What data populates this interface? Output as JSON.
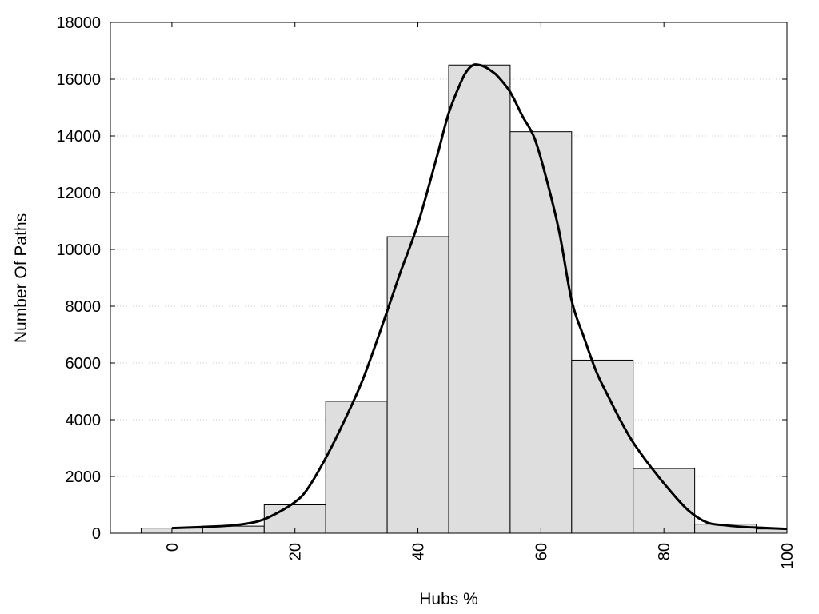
{
  "chart_data": {
    "type": "bar",
    "title": "",
    "xlabel": "Hubs %",
    "ylabel": "Number Of Paths",
    "xlim": [
      -10,
      100
    ],
    "ylim": [
      0,
      18000
    ],
    "x_ticks": [
      0,
      20,
      40,
      60,
      80,
      100
    ],
    "y_ticks": [
      0,
      2000,
      4000,
      6000,
      8000,
      10000,
      12000,
      14000,
      16000,
      18000
    ],
    "grid": "horizontal dotted",
    "legend": "none",
    "bar_width": 10,
    "bars": [
      {
        "x": 0,
        "value": 180
      },
      {
        "x": 10,
        "value": 250
      },
      {
        "x": 20,
        "value": 1000
      },
      {
        "x": 30,
        "value": 4650
      },
      {
        "x": 40,
        "value": 10450
      },
      {
        "x": 50,
        "value": 16500
      },
      {
        "x": 60,
        "value": 14150
      },
      {
        "x": 70,
        "value": 6100
      },
      {
        "x": 80,
        "value": 2280
      },
      {
        "x": 90,
        "value": 320
      },
      {
        "x": 100,
        "value": 150
      }
    ],
    "curve": {
      "x": [
        0,
        5,
        10,
        14,
        17,
        20,
        22,
        25,
        28,
        31,
        34,
        37,
        40,
        43,
        45,
        47,
        48,
        49,
        50,
        51,
        52,
        53,
        55,
        57,
        59,
        61,
        63,
        65,
        67,
        69,
        71,
        73,
        75,
        78,
        81,
        84,
        87,
        90,
        93,
        96,
        100
      ],
      "y": [
        180,
        220,
        280,
        420,
        700,
        1100,
        1550,
        2650,
        3950,
        5400,
        7200,
        9100,
        10900,
        13200,
        14800,
        15900,
        16300,
        16500,
        16500,
        16420,
        16280,
        16100,
        15550,
        14700,
        13900,
        12400,
        10600,
        8200,
        6900,
        5700,
        4800,
        3950,
        3200,
        2300,
        1500,
        800,
        380,
        280,
        220,
        190,
        150
      ]
    },
    "colors": {
      "bar_fill": "#dedede",
      "bar_stroke": "#000000",
      "curve": "#000000",
      "grid": "#c8c8c8"
    }
  }
}
